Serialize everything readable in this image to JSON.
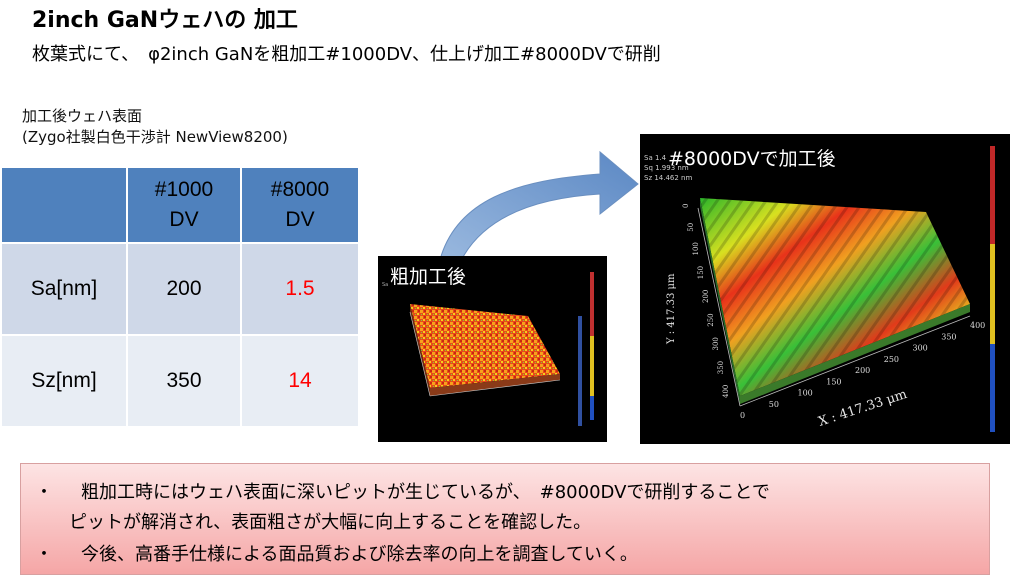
{
  "header": {
    "title": "2inch GaNウェハの 加工",
    "subtitle": "枚葉式にて、　φ2inch GaNを粗加工#1000DV、仕上げ加工#8000DVで研削"
  },
  "caption": {
    "line1": "加工後ウェハ表面",
    "line2": "(Zygo社製白色干渉計 NewView8200)"
  },
  "table": {
    "headers": [
      "",
      "#1000\nDV",
      "#8000\nDV"
    ],
    "rows": [
      {
        "label": "Sa[nm]",
        "v1000": "200",
        "v8000": "1.5"
      },
      {
        "label": "Sz[nm]",
        "v1000": "350",
        "v8000": "14"
      }
    ],
    "colors": {
      "header": "#4f81bd",
      "row1": "#cfd8e8",
      "row2": "#e8edf4",
      "highlight": "#ff0000"
    }
  },
  "plots": {
    "rough": {
      "label": "粗加工後"
    },
    "finish": {
      "label": "#8000DVで加工後",
      "stats": [
        "Sa 1.4",
        "Sq 1.993 nm",
        "Sz 14.462 nm"
      ],
      "x_axis_label": "X : 417.33 μm",
      "y_axis_label": "Y : 417.33 μm",
      "x_ticks": [
        "0",
        "50",
        "100",
        "150",
        "200",
        "250",
        "300",
        "350",
        "400"
      ],
      "y_ticks": [
        "0",
        "50",
        "100",
        "150",
        "200",
        "250",
        "300",
        "350",
        "400"
      ]
    }
  },
  "notes": {
    "bullet": "・",
    "line1": "粗加工時にはウェハ表面に深いピットが生じているが、　#8000DVで研削することで",
    "line2": "ピットが解消され、表面粗さが大幅に向上することを確認した。",
    "line3": "今後、高番手仕様による面品質および除去率の向上を調査していく。"
  }
}
